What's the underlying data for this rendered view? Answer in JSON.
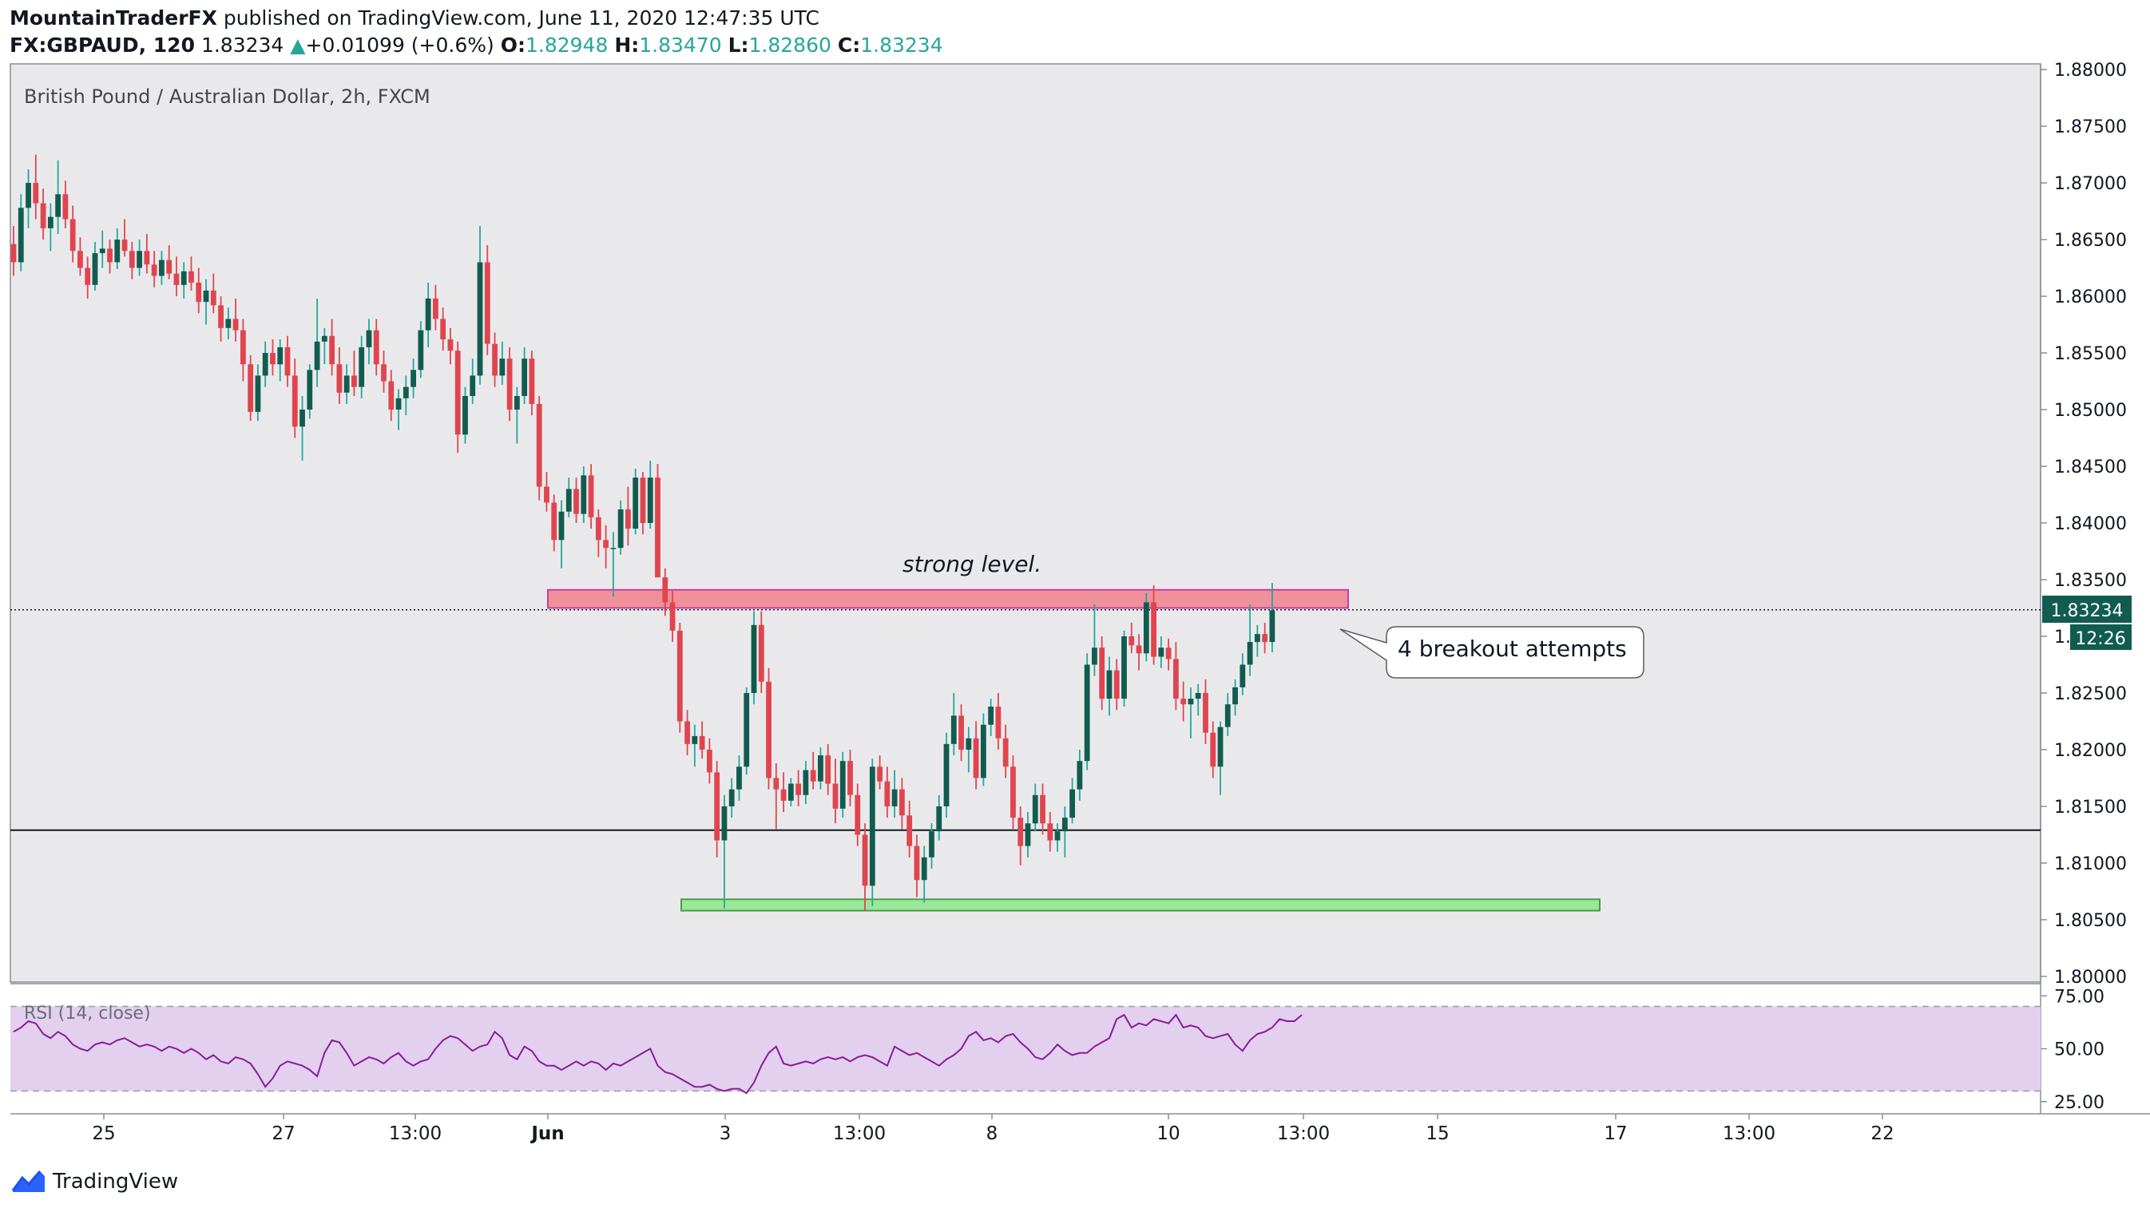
{
  "header": {
    "author": "MountainTraderFX",
    "published": "published on TradingView.com, June 11, 2020 12:47:35 UTC",
    "symbol": "FX:GBPAUD, 120",
    "last": "1.83234",
    "change": "+0.01099 (+0.6%)",
    "o_label": "O:",
    "o": "1.82948",
    "h_label": "H:",
    "h": "1.83470",
    "l_label": "L:",
    "l": "1.82860",
    "c_label": "C:",
    "c": "1.83234"
  },
  "footer": {
    "logo_text": "TradingView"
  },
  "colors": {
    "up": "#26a69a",
    "up_body": "#115c4f",
    "down": "#e0454f",
    "pane_bg": "#e9e9ec",
    "resistance_fill": "#f0909a",
    "resistance_stroke": "#c040a0",
    "support_fill": "#98e898",
    "support_stroke": "#4a9a4a",
    "rsi_band": "#e2d0ee",
    "rsi_line": "#8a1a9a"
  },
  "chart_data": {
    "type": "candlestick",
    "title": "British Pound / Australian Dollar, 2h, FXCM",
    "y_ticks": [
      "1.80000",
      "1.80500",
      "1.81000",
      "1.81500",
      "1.82000",
      "1.82500",
      "1.83000",
      "1.83500",
      "1.84000",
      "1.84500",
      "1.85000",
      "1.85500",
      "1.86000",
      "1.86500",
      "1.87000",
      "1.87500",
      "1.88000"
    ],
    "ylim": [
      1.7995,
      1.8805
    ],
    "x_ticks": [
      "25",
      "27",
      "13:00",
      "Jun",
      "3",
      "13:00",
      "8",
      "10",
      "13:00",
      "15",
      "17",
      "13:00",
      "22"
    ],
    "last_price_label": "1.83234",
    "countdown_label": "12:26",
    "annotations": {
      "resistance_label": "strong level.",
      "callout": "4 breakout attempts"
    },
    "zones": {
      "resistance": [
        1.8325,
        1.8341
      ],
      "support": [
        1.8058,
        1.8068
      ]
    },
    "horizontal_line": 1.8129,
    "current_price": 1.83234,
    "candles": [
      [
        1.8646,
        1.8662,
        1.8618,
        1.863
      ],
      [
        1.863,
        1.869,
        1.8622,
        1.8678
      ],
      [
        1.8678,
        1.8712,
        1.866,
        1.87
      ],
      [
        1.87,
        1.8725,
        1.8668,
        1.8682
      ],
      [
        1.8682,
        1.8695,
        1.865,
        1.866
      ],
      [
        1.866,
        1.8682,
        1.864,
        1.867
      ],
      [
        1.867,
        1.872,
        1.8655,
        1.869
      ],
      [
        1.869,
        1.8702,
        1.866,
        1.8668
      ],
      [
        1.8668,
        1.868,
        1.863,
        1.864
      ],
      [
        1.864,
        1.8652,
        1.8618,
        1.8625
      ],
      [
        1.8625,
        1.8635,
        1.8598,
        1.861
      ],
      [
        1.861,
        1.8648,
        1.8605,
        1.8638
      ],
      [
        1.8638,
        1.8658,
        1.8625,
        1.8642
      ],
      [
        1.8642,
        1.865,
        1.862,
        1.863
      ],
      [
        1.863,
        1.866,
        1.8624,
        1.865
      ],
      [
        1.865,
        1.8668,
        1.8635,
        1.864
      ],
      [
        1.864,
        1.8648,
        1.8615,
        1.8625
      ],
      [
        1.8625,
        1.865,
        1.8618,
        1.864
      ],
      [
        1.864,
        1.8655,
        1.862,
        1.8628
      ],
      [
        1.8628,
        1.864,
        1.8608,
        1.8618
      ],
      [
        1.8618,
        1.864,
        1.861,
        1.8632
      ],
      [
        1.8632,
        1.8645,
        1.8615,
        1.862
      ],
      [
        1.862,
        1.8635,
        1.86,
        1.861
      ],
      [
        1.861,
        1.863,
        1.8598,
        1.8622
      ],
      [
        1.8622,
        1.8635,
        1.8605,
        1.8612
      ],
      [
        1.8612,
        1.8625,
        1.8585,
        1.8595
      ],
      [
        1.8595,
        1.8615,
        1.8575,
        1.8605
      ],
      [
        1.8605,
        1.862,
        1.8585,
        1.8592
      ],
      [
        1.8592,
        1.86,
        1.856,
        1.8572
      ],
      [
        1.8572,
        1.859,
        1.8562,
        1.858
      ],
      [
        1.858,
        1.8598,
        1.856,
        1.857
      ],
      [
        1.857,
        1.858,
        1.8525,
        1.854
      ],
      [
        1.854,
        1.8548,
        1.849,
        1.8498
      ],
      [
        1.8498,
        1.854,
        1.849,
        1.853
      ],
      [
        1.853,
        1.856,
        1.852,
        1.855
      ],
      [
        1.855,
        1.8562,
        1.853,
        1.854
      ],
      [
        1.854,
        1.8562,
        1.8525,
        1.8555
      ],
      [
        1.8555,
        1.8565,
        1.852,
        1.853
      ],
      [
        1.853,
        1.8545,
        1.8475,
        1.8485
      ],
      [
        1.8485,
        1.8512,
        1.8455,
        1.85
      ],
      [
        1.85,
        1.854,
        1.8492,
        1.8535
      ],
      [
        1.8535,
        1.8598,
        1.852,
        1.856
      ],
      [
        1.856,
        1.8572,
        1.854,
        1.8565
      ],
      [
        1.8565,
        1.858,
        1.853,
        1.854
      ],
      [
        1.854,
        1.8555,
        1.8505,
        1.8515
      ],
      [
        1.8515,
        1.854,
        1.8505,
        1.853
      ],
      [
        1.853,
        1.8552,
        1.8512,
        1.852
      ],
      [
        1.852,
        1.8565,
        1.851,
        1.8555
      ],
      [
        1.8555,
        1.858,
        1.854,
        1.857
      ],
      [
        1.857,
        1.858,
        1.853,
        1.854
      ],
      [
        1.854,
        1.8552,
        1.8515,
        1.8525
      ],
      [
        1.8525,
        1.8535,
        1.849,
        1.85
      ],
      [
        1.85,
        1.8518,
        1.8482,
        1.851
      ],
      [
        1.851,
        1.853,
        1.8495,
        1.852
      ],
      [
        1.852,
        1.8545,
        1.851,
        1.8535
      ],
      [
        1.8535,
        1.8578,
        1.8528,
        1.857
      ],
      [
        1.857,
        1.8612,
        1.8555,
        1.8598
      ],
      [
        1.8598,
        1.861,
        1.857,
        1.858
      ],
      [
        1.858,
        1.859,
        1.8552,
        1.8562
      ],
      [
        1.8562,
        1.8572,
        1.854,
        1.8552
      ],
      [
        1.8552,
        1.856,
        1.8462,
        1.8478
      ],
      [
        1.8478,
        1.852,
        1.847,
        1.8512
      ],
      [
        1.8512,
        1.8545,
        1.8505,
        1.853
      ],
      [
        1.853,
        1.8662,
        1.8522,
        1.863
      ],
      [
        1.863,
        1.8645,
        1.8548,
        1.8558
      ],
      [
        1.8558,
        1.8568,
        1.852,
        1.853
      ],
      [
        1.853,
        1.856,
        1.8522,
        1.8545
      ],
      [
        1.8545,
        1.8555,
        1.849,
        1.85
      ],
      [
        1.85,
        1.852,
        1.847,
        1.8512
      ],
      [
        1.8512,
        1.8555,
        1.8505,
        1.8545
      ],
      [
        1.8545,
        1.8552,
        1.8495,
        1.8505
      ],
      [
        1.8505,
        1.8512,
        1.842,
        1.8432
      ],
      [
        1.8432,
        1.8445,
        1.841,
        1.8418
      ],
      [
        1.8418,
        1.8425,
        1.8375,
        1.8385
      ],
      [
        1.8385,
        1.842,
        1.836,
        1.841
      ],
      [
        1.841,
        1.844,
        1.8405,
        1.843
      ],
      [
        1.843,
        1.844,
        1.84,
        1.8408
      ],
      [
        1.8408,
        1.845,
        1.84,
        1.8442
      ],
      [
        1.8442,
        1.8452,
        1.8395,
        1.8405
      ],
      [
        1.8405,
        1.8412,
        1.837,
        1.8385
      ],
      [
        1.8385,
        1.8398,
        1.836,
        1.8378
      ],
      [
        1.8378,
        1.8392,
        1.8335,
        1.8378
      ],
      [
        1.8378,
        1.842,
        1.8372,
        1.8412
      ],
      [
        1.8412,
        1.8432,
        1.838,
        1.8395
      ],
      [
        1.8395,
        1.8448,
        1.839,
        1.844
      ],
      [
        1.844,
        1.8445,
        1.839,
        1.84
      ],
      [
        1.84,
        1.8455,
        1.8395,
        1.844
      ],
      [
        1.844,
        1.8452,
        1.836,
        1.8352
      ],
      [
        1.8352,
        1.836,
        1.8318,
        1.833
      ],
      [
        1.833,
        1.834,
        1.8295,
        1.8305
      ],
      [
        1.8305,
        1.8312,
        1.8215,
        1.8225
      ],
      [
        1.8225,
        1.8235,
        1.8195,
        1.8205
      ],
      [
        1.8205,
        1.8222,
        1.8185,
        1.8212
      ],
      [
        1.8212,
        1.8225,
        1.8192,
        1.82
      ],
      [
        1.82,
        1.821,
        1.817,
        1.818
      ],
      [
        1.818,
        1.819,
        1.8105,
        1.812
      ],
      [
        1.812,
        1.816,
        1.806,
        1.815
      ],
      [
        1.815,
        1.8175,
        1.814,
        1.8165
      ],
      [
        1.8165,
        1.8195,
        1.8155,
        1.8185
      ],
      [
        1.8185,
        1.8255,
        1.8178,
        1.825
      ],
      [
        1.825,
        1.8322,
        1.824,
        1.831
      ],
      [
        1.831,
        1.8322,
        1.825,
        1.826
      ],
      [
        1.826,
        1.8272,
        1.8165,
        1.8175
      ],
      [
        1.8175,
        1.8188,
        1.813,
        1.8165
      ],
      [
        1.8165,
        1.818,
        1.8145,
        1.8155
      ],
      [
        1.8155,
        1.8175,
        1.815,
        1.817
      ],
      [
        1.817,
        1.8182,
        1.815,
        1.816
      ],
      [
        1.816,
        1.819,
        1.8152,
        1.8182
      ],
      [
        1.8182,
        1.8198,
        1.8165,
        1.8172
      ],
      [
        1.8172,
        1.8202,
        1.8165,
        1.8195
      ],
      [
        1.8195,
        1.8205,
        1.816,
        1.817
      ],
      [
        1.817,
        1.8192,
        1.8135,
        1.8148
      ],
      [
        1.8148,
        1.8198,
        1.814,
        1.819
      ],
      [
        1.819,
        1.82,
        1.815,
        1.816
      ],
      [
        1.816,
        1.817,
        1.8115,
        1.8125
      ],
      [
        1.8125,
        1.8135,
        1.8058,
        1.808
      ],
      [
        1.808,
        1.8192,
        1.8062,
        1.8185
      ],
      [
        1.8185,
        1.8195,
        1.8165,
        1.8172
      ],
      [
        1.8172,
        1.8185,
        1.814,
        1.815
      ],
      [
        1.815,
        1.8182,
        1.814,
        1.8165
      ],
      [
        1.8165,
        1.8175,
        1.813,
        1.8142
      ],
      [
        1.8142,
        1.8155,
        1.8105,
        1.8115
      ],
      [
        1.8115,
        1.8125,
        1.807,
        1.8085
      ],
      [
        1.8085,
        1.8115,
        1.8065,
        1.8105
      ],
      [
        1.8105,
        1.8135,
        1.8095,
        1.8128
      ],
      [
        1.8128,
        1.816,
        1.812,
        1.815
      ],
      [
        1.815,
        1.8215,
        1.814,
        1.8205
      ],
      [
        1.8205,
        1.825,
        1.8195,
        1.823
      ],
      [
        1.823,
        1.824,
        1.819,
        1.82
      ],
      [
        1.82,
        1.822,
        1.818,
        1.821
      ],
      [
        1.821,
        1.8225,
        1.8165,
        1.8175
      ],
      [
        1.8175,
        1.8232,
        1.8168,
        1.8222
      ],
      [
        1.8222,
        1.8245,
        1.8212,
        1.8238
      ],
      [
        1.8238,
        1.825,
        1.82,
        1.821
      ],
      [
        1.821,
        1.8222,
        1.8175,
        1.8185
      ],
      [
        1.8185,
        1.8195,
        1.813,
        1.814
      ],
      [
        1.814,
        1.815,
        1.8098,
        1.8115
      ],
      [
        1.8115,
        1.8145,
        1.8105,
        1.8135
      ],
      [
        1.8135,
        1.817,
        1.8128,
        1.816
      ],
      [
        1.816,
        1.817,
        1.8125,
        1.8135
      ],
      [
        1.8135,
        1.8145,
        1.811,
        1.812
      ],
      [
        1.812,
        1.8135,
        1.811,
        1.8128
      ],
      [
        1.8128,
        1.815,
        1.8105,
        1.814
      ],
      [
        1.814,
        1.8175,
        1.8135,
        1.8165
      ],
      [
        1.8165,
        1.82,
        1.8155,
        1.819
      ],
      [
        1.819,
        1.8285,
        1.8182,
        1.8275
      ],
      [
        1.8275,
        1.8328,
        1.8265,
        1.829
      ],
      [
        1.829,
        1.83,
        1.8235,
        1.8245
      ],
      [
        1.8245,
        1.8282,
        1.823,
        1.827
      ],
      [
        1.827,
        1.828,
        1.8235,
        1.8245
      ],
      [
        1.8245,
        1.8305,
        1.8238,
        1.83
      ],
      [
        1.83,
        1.8312,
        1.8285,
        1.8292
      ],
      [
        1.8292,
        1.8302,
        1.827,
        1.8285
      ],
      [
        1.8285,
        1.8338,
        1.8278,
        1.833
      ],
      [
        1.833,
        1.8345,
        1.8275,
        1.8282
      ],
      [
        1.8282,
        1.83,
        1.8272,
        1.829
      ],
      [
        1.829,
        1.8298,
        1.827,
        1.828
      ],
      [
        1.828,
        1.8295,
        1.8235,
        1.8245
      ],
      [
        1.8245,
        1.826,
        1.8225,
        1.824
      ],
      [
        1.824,
        1.8255,
        1.821,
        1.8245
      ],
      [
        1.8245,
        1.8258,
        1.823,
        1.825
      ],
      [
        1.825,
        1.8262,
        1.8205,
        1.8215
      ],
      [
        1.8215,
        1.8225,
        1.8175,
        1.8185
      ],
      [
        1.8185,
        1.8225,
        1.816,
        1.822
      ],
      [
        1.822,
        1.825,
        1.8212,
        1.824
      ],
      [
        1.824,
        1.8262,
        1.823,
        1.8255
      ],
      [
        1.8255,
        1.8285,
        1.8248,
        1.8275
      ],
      [
        1.8275,
        1.8328,
        1.8265,
        1.8295
      ],
      [
        1.8295,
        1.831,
        1.8282,
        1.8302
      ],
      [
        1.8302,
        1.8312,
        1.8285,
        1.8295
      ],
      [
        1.8295,
        1.8347,
        1.8286,
        1.8323
      ]
    ],
    "rsi": {
      "label": "RSI (14, close)",
      "y_ticks": [
        "25.00",
        "50.00",
        "75.00"
      ],
      "ylim": [
        20,
        80
      ],
      "band": [
        30,
        70
      ],
      "values": [
        58,
        60,
        63,
        62,
        57,
        55,
        58,
        56,
        52,
        50,
        49,
        52,
        53,
        52,
        54,
        55,
        53,
        51,
        52,
        51,
        49,
        51,
        50,
        48,
        50,
        48,
        45,
        47,
        44,
        43,
        46,
        45,
        43,
        38,
        32,
        36,
        42,
        44,
        43,
        42,
        40,
        37,
        48,
        54,
        53,
        48,
        42,
        44,
        46,
        45,
        43,
        46,
        48,
        44,
        42,
        44,
        45,
        50,
        54,
        56,
        55,
        52,
        49,
        51,
        52,
        58,
        55,
        47,
        45,
        51,
        49,
        44,
        42,
        42,
        40,
        42,
        44,
        42,
        44,
        43,
        40,
        43,
        42,
        44,
        46,
        48,
        50,
        42,
        39,
        38,
        36,
        34,
        32,
        32,
        33,
        31,
        30,
        31,
        31,
        29,
        34,
        42,
        48,
        51,
        43,
        42,
        43,
        44,
        43,
        45,
        46,
        45,
        46,
        44,
        46,
        47,
        46,
        44,
        42,
        51,
        49,
        47,
        48,
        46,
        44,
        42,
        45,
        47,
        50,
        56,
        58,
        54,
        55,
        53,
        56,
        57,
        53,
        50,
        46,
        45,
        48,
        52,
        49,
        47,
        48,
        48,
        51,
        53,
        55,
        64,
        66,
        60,
        62,
        61,
        64,
        63,
        62,
        66,
        60,
        61,
        60,
        56,
        55,
        56,
        57,
        52,
        49,
        54,
        57,
        58,
        60,
        64,
        63,
        63,
        66
      ]
    }
  }
}
